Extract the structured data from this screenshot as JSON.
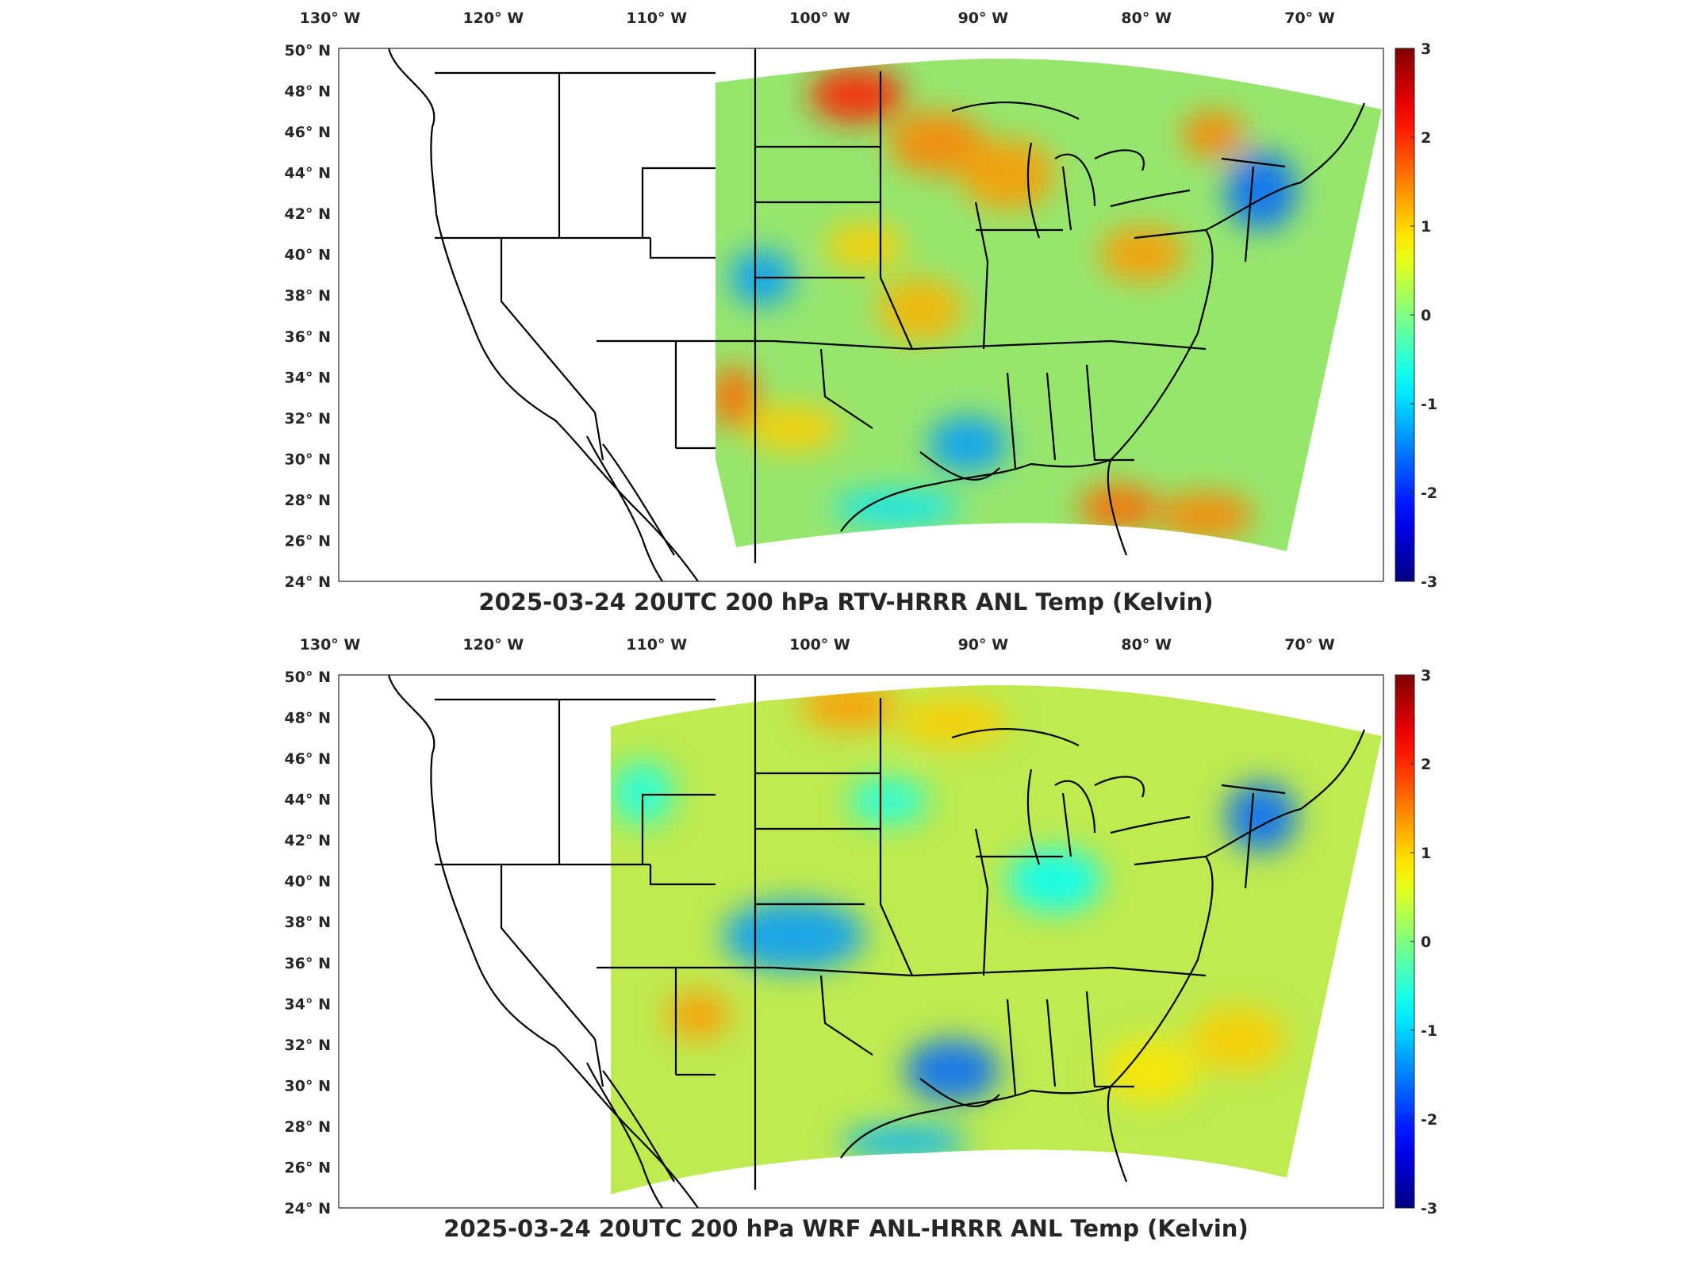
{
  "figure": {
    "colormap": "jet",
    "panels": [
      {
        "title": "2025-03-24 20UTC 200 hPa RTV-HRRR ANL Temp (Kelvin)",
        "variable": "Temp",
        "units": "Kelvin",
        "level": "200 hPa",
        "valid_time": "2025-03-24 20UTC",
        "colorbar": {
          "min": -3,
          "max": 3,
          "ticks": [
            "3",
            "2",
            "1",
            "0",
            "-1",
            "-2",
            "-3"
          ]
        },
        "lon_ticks": [
          "130° W",
          "120° W",
          "110° W",
          "100° W",
          "90° W",
          "80° W",
          "70° W"
        ],
        "lat_ticks": [
          "50° N",
          "48° N",
          "46° N",
          "44° N",
          "42° N",
          "40° N",
          "38° N",
          "36° N",
          "34° N",
          "32° N",
          "30° N",
          "28° N",
          "26° N",
          "24° N"
        ],
        "field_extent": "east of ~107° W",
        "field_style": "mostly green to yellow with orange patches over the northern Plains, Iowa/Wisconsin, Florida and Maine; blue patches over Colorado, the lower Mississippi valley and New England"
      },
      {
        "title": "2025-03-24 20UTC 200 hPa WRF ANL-HRRR ANL Temp (Kelvin)",
        "variable": "Temp",
        "units": "Kelvin",
        "level": "200 hPa",
        "valid_time": "2025-03-24 20UTC",
        "colorbar": {
          "min": -3,
          "max": 3,
          "ticks": [
            "3",
            "2",
            "1",
            "0",
            "-1",
            "-2",
            "-3"
          ]
        },
        "lon_ticks": [
          "130° W",
          "120° W",
          "110° W",
          "100° W",
          "90° W",
          "80° W",
          "70° W"
        ],
        "lat_ticks": [
          "50° N",
          "48° N",
          "46° N",
          "44° N",
          "42° N",
          "40° N",
          "38° N",
          "36° N",
          "34° N",
          "32° N",
          "30° N",
          "28° N",
          "26° N",
          "24° N"
        ],
        "field_extent": "east of ~113° W",
        "field_style": "smoother field, mostly yellow-green with cyan over the central Plains, Gulf coast and New England"
      }
    ]
  }
}
